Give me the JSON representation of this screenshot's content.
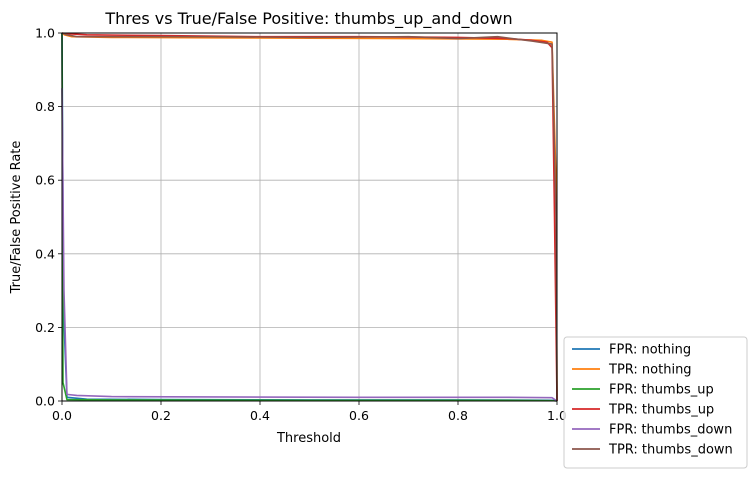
{
  "chart_data": {
    "type": "line",
    "title": "Thres vs True/False Positive: thumbs_up_and_down",
    "xlabel": "Threshold",
    "ylabel": "True/False Positive Rate",
    "xlim": [
      0,
      1
    ],
    "ylim": [
      0,
      1
    ],
    "grid": true,
    "legend_position": "outside-lower-right",
    "xticks": [
      "0.0",
      "0.2",
      "0.4",
      "0.6",
      "0.8",
      "1.0"
    ],
    "yticks": [
      "0.0",
      "0.2",
      "0.4",
      "0.6",
      "0.8",
      "1.0"
    ],
    "series": [
      {
        "name": "FPR: nothing",
        "color": "#1f77b4",
        "x": [
          0,
          0.003,
          0.01,
          0.05,
          0.2,
          0.5,
          0.8,
          0.99,
          0.998,
          1.0
        ],
        "y": [
          1.0,
          0.25,
          0.01,
          0.005,
          0.004,
          0.003,
          0.003,
          0.002,
          0.001,
          0.0
        ]
      },
      {
        "name": "TPR: nothing",
        "color": "#ff7f0e",
        "x": [
          0,
          0.005,
          0.02,
          0.1,
          0.3,
          0.5,
          0.7,
          0.9,
          0.97,
          0.99,
          0.998,
          1.0
        ],
        "y": [
          1.0,
          0.995,
          0.99,
          0.988,
          0.987,
          0.986,
          0.985,
          0.983,
          0.98,
          0.975,
          0.6,
          0.0
        ]
      },
      {
        "name": "FPR: thumbs_up",
        "color": "#2ca02c",
        "x": [
          0,
          0.002,
          0.01,
          0.1,
          0.5,
          0.9,
          0.99,
          1.0
        ],
        "y": [
          1.0,
          0.05,
          0.004,
          0.003,
          0.002,
          0.002,
          0.001,
          0.0
        ]
      },
      {
        "name": "TPR: thumbs_up",
        "color": "#d62728",
        "x": [
          0,
          0.01,
          0.05,
          0.2,
          0.4,
          0.6,
          0.8,
          0.9,
          0.95,
          0.98,
          0.99,
          0.995,
          1.0
        ],
        "y": [
          1.0,
          0.998,
          0.995,
          0.993,
          0.99,
          0.99,
          0.988,
          0.985,
          0.98,
          0.975,
          0.96,
          0.5,
          0.0
        ]
      },
      {
        "name": "FPR: thumbs_down",
        "color": "#9467bd",
        "x": [
          0,
          0.004,
          0.01,
          0.03,
          0.1,
          0.3,
          0.6,
          0.9,
          0.99,
          1.0
        ],
        "y": [
          0.85,
          0.3,
          0.018,
          0.015,
          0.012,
          0.011,
          0.01,
          0.01,
          0.009,
          0.0
        ]
      },
      {
        "name": "TPR: thumbs_down",
        "color": "#8c564b",
        "x": [
          0,
          0.01,
          0.03,
          0.12,
          0.3,
          0.5,
          0.7,
          0.8,
          0.88,
          0.95,
          0.99,
          0.998,
          1.0
        ],
        "y": [
          1.0,
          0.995,
          0.99,
          0.99,
          0.99,
          0.988,
          0.99,
          0.985,
          0.99,
          0.978,
          0.97,
          0.5,
          0.0
        ]
      }
    ]
  }
}
